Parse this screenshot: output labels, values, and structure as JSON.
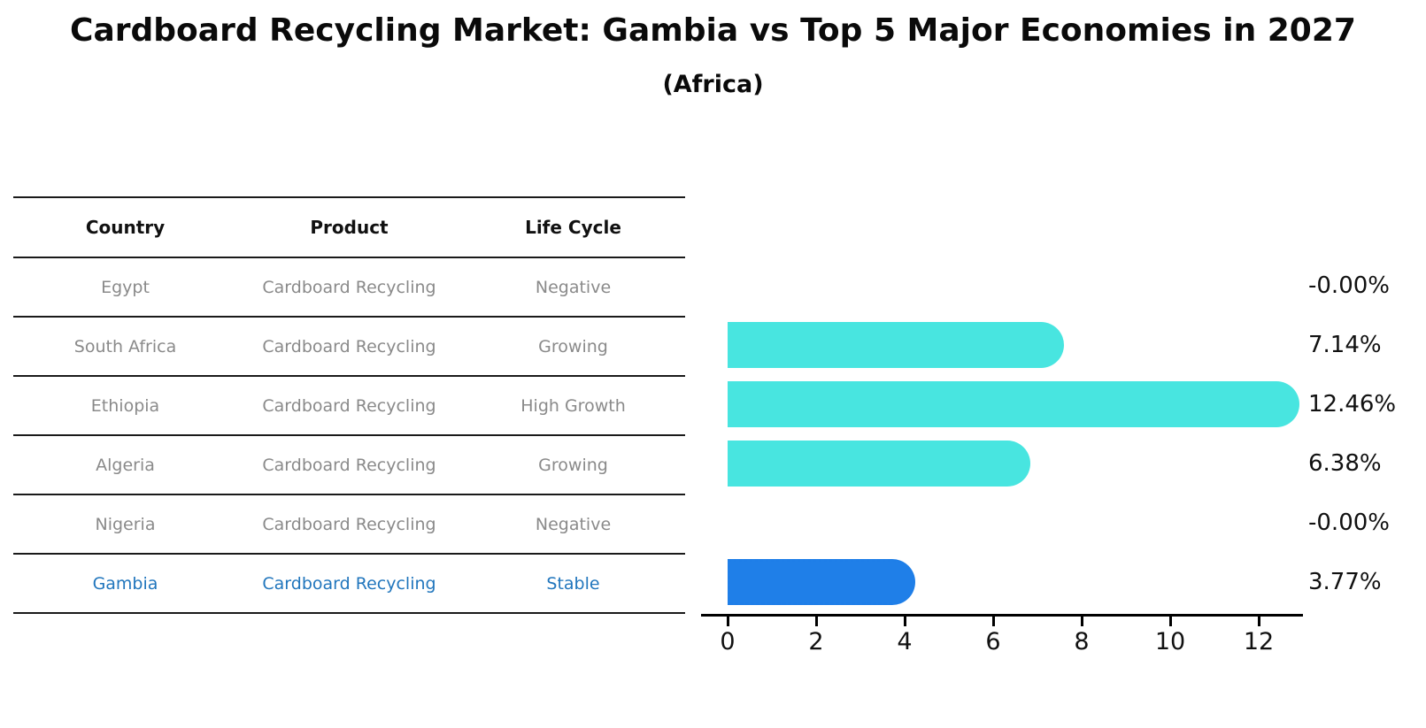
{
  "title": "Cardboard Recycling Market: Gambia vs Top 5 Major Economies in 2027",
  "subtitle": "(Africa)",
  "colors": {
    "bar_default": "#48e5e0",
    "bar_highlight": "#1f7fe8",
    "highlight_text": "#2176bd",
    "row_text": "#8a8a8a",
    "header_text": "#111111",
    "axis": "#000000"
  },
  "table": {
    "headers": [
      "Country",
      "Product",
      "Life Cycle"
    ],
    "rows": [
      {
        "cells": [
          "Egypt",
          "Cardboard Recycling",
          "Negative"
        ],
        "highlight": false
      },
      {
        "cells": [
          "South Africa",
          "Cardboard Recycling",
          "Growing"
        ],
        "highlight": false
      },
      {
        "cells": [
          "Ethiopia",
          "Cardboard Recycling",
          "High Growth"
        ],
        "highlight": false
      },
      {
        "cells": [
          "Algeria",
          "Cardboard Recycling",
          "Growing"
        ],
        "highlight": false
      },
      {
        "cells": [
          "Nigeria",
          "Cardboard Recycling",
          "Negative"
        ],
        "highlight": false
      },
      {
        "cells": [
          "Gambia",
          "Cardboard Recycling",
          "Stable"
        ],
        "highlight": true
      }
    ]
  },
  "chart_data": {
    "type": "bar",
    "orientation": "horizontal",
    "title": "Cardboard Recycling Market: Gambia vs Top 5 Major Economies in 2027",
    "subtitle": "(Africa)",
    "categories": [
      "Egypt",
      "South Africa",
      "Ethiopia",
      "Algeria",
      "Nigeria",
      "Gambia"
    ],
    "values": [
      -0.0,
      7.14,
      12.46,
      6.38,
      -0.0,
      3.77
    ],
    "value_labels": [
      "-0.00%",
      "7.14%",
      "12.46%",
      "6.38%",
      "-0.00%",
      "3.77%"
    ],
    "life_cycle": [
      "Negative",
      "Growing",
      "High Growth",
      "Growing",
      "Negative",
      "Stable"
    ],
    "highlight_category": "Gambia",
    "xlim": [
      0,
      13
    ],
    "x_ticks": [
      0,
      2,
      4,
      6,
      8,
      10,
      12
    ],
    "grid": false,
    "legend": false
  }
}
